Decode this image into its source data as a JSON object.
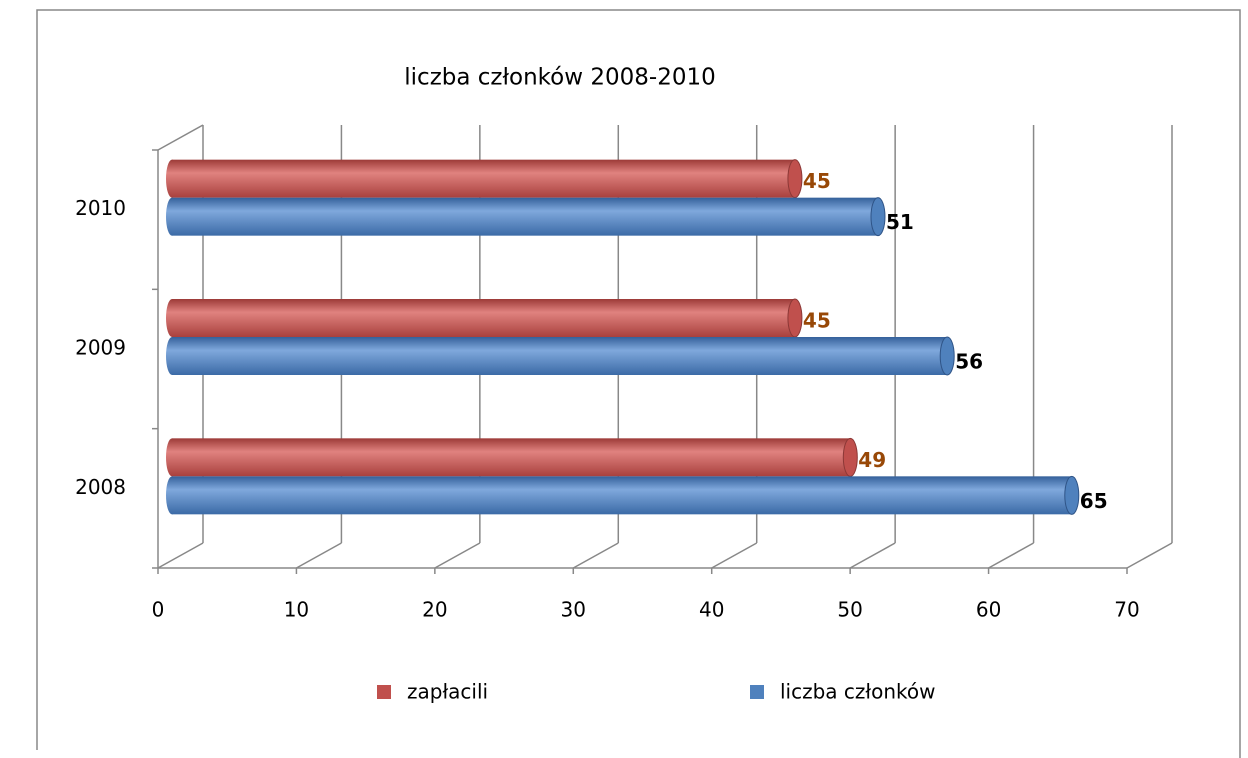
{
  "chart_data": {
    "type": "bar",
    "orientation": "horizontal",
    "title": "liczba członków 2008-2010",
    "categories": [
      "2008",
      "2009",
      "2010"
    ],
    "series": [
      {
        "name": "zapłacili",
        "color": "#c0504d",
        "values": [
          49,
          45,
          45
        ]
      },
      {
        "name": "liczba członków",
        "color": "#4f81bd",
        "values": [
          65,
          56,
          51
        ]
      }
    ],
    "xlim": [
      0,
      70
    ],
    "xticks": [
      0,
      10,
      20,
      30,
      40,
      50,
      60,
      70
    ],
    "grid": true,
    "legend": "bottom"
  }
}
